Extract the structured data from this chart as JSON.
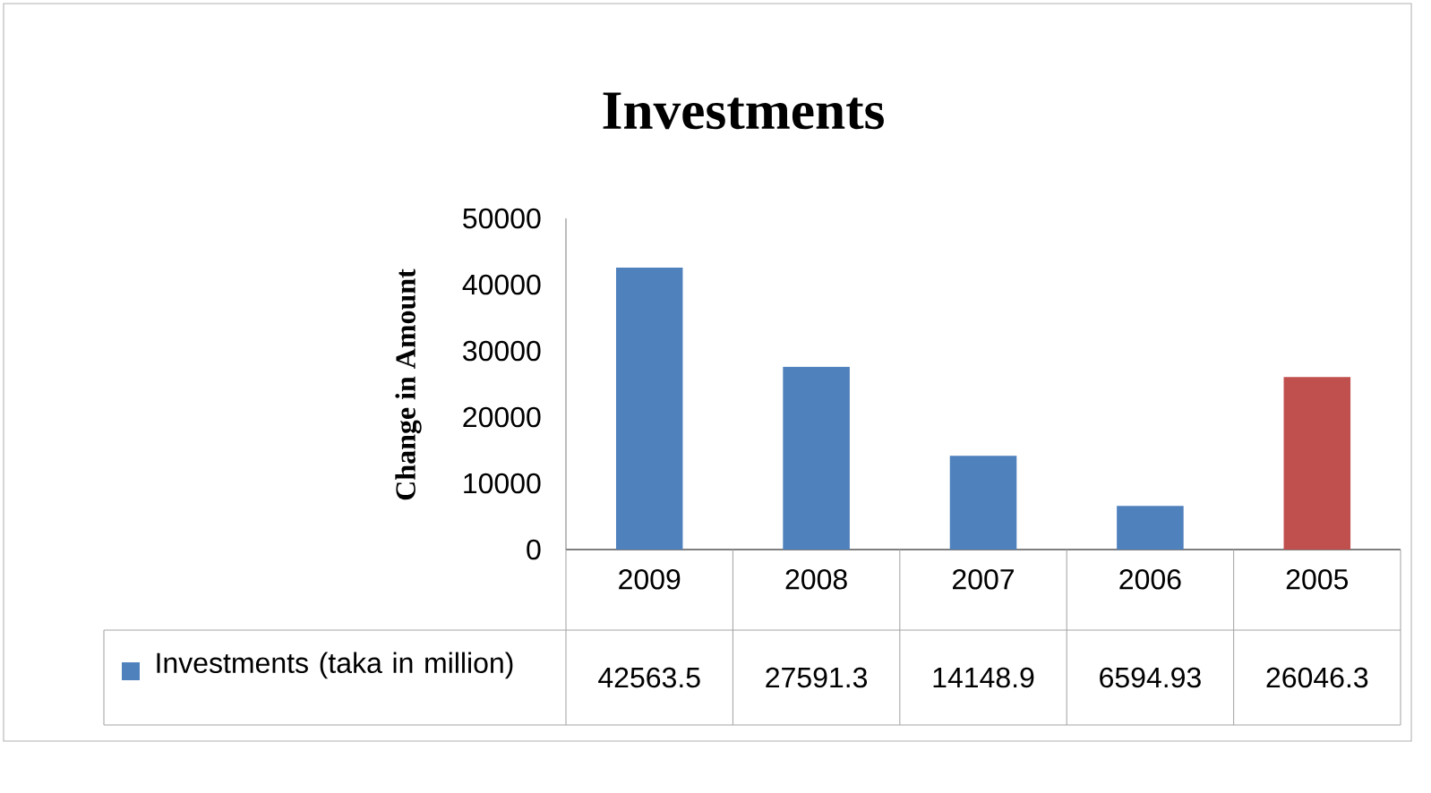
{
  "chart_data": {
    "type": "bar",
    "title": "Investments",
    "ylabel": "Change in Amount",
    "categories": [
      "2009",
      "2008",
      "2007",
      "2006",
      "2005"
    ],
    "series": [
      {
        "name": "Investments (taka in million)",
        "color": "#4f81bd",
        "colors": [
          "#4f81bd",
          "#4f81bd",
          "#4f81bd",
          "#4f81bd",
          "#c0504d"
        ],
        "values": [
          42563.5,
          27591.3,
          14148.9,
          6594.93,
          26046.3
        ]
      }
    ],
    "ylim": [
      0,
      50000
    ],
    "yticks": [
      0,
      10000,
      20000,
      30000,
      40000,
      50000
    ],
    "data_labels": true,
    "legend": "bottom left"
  }
}
